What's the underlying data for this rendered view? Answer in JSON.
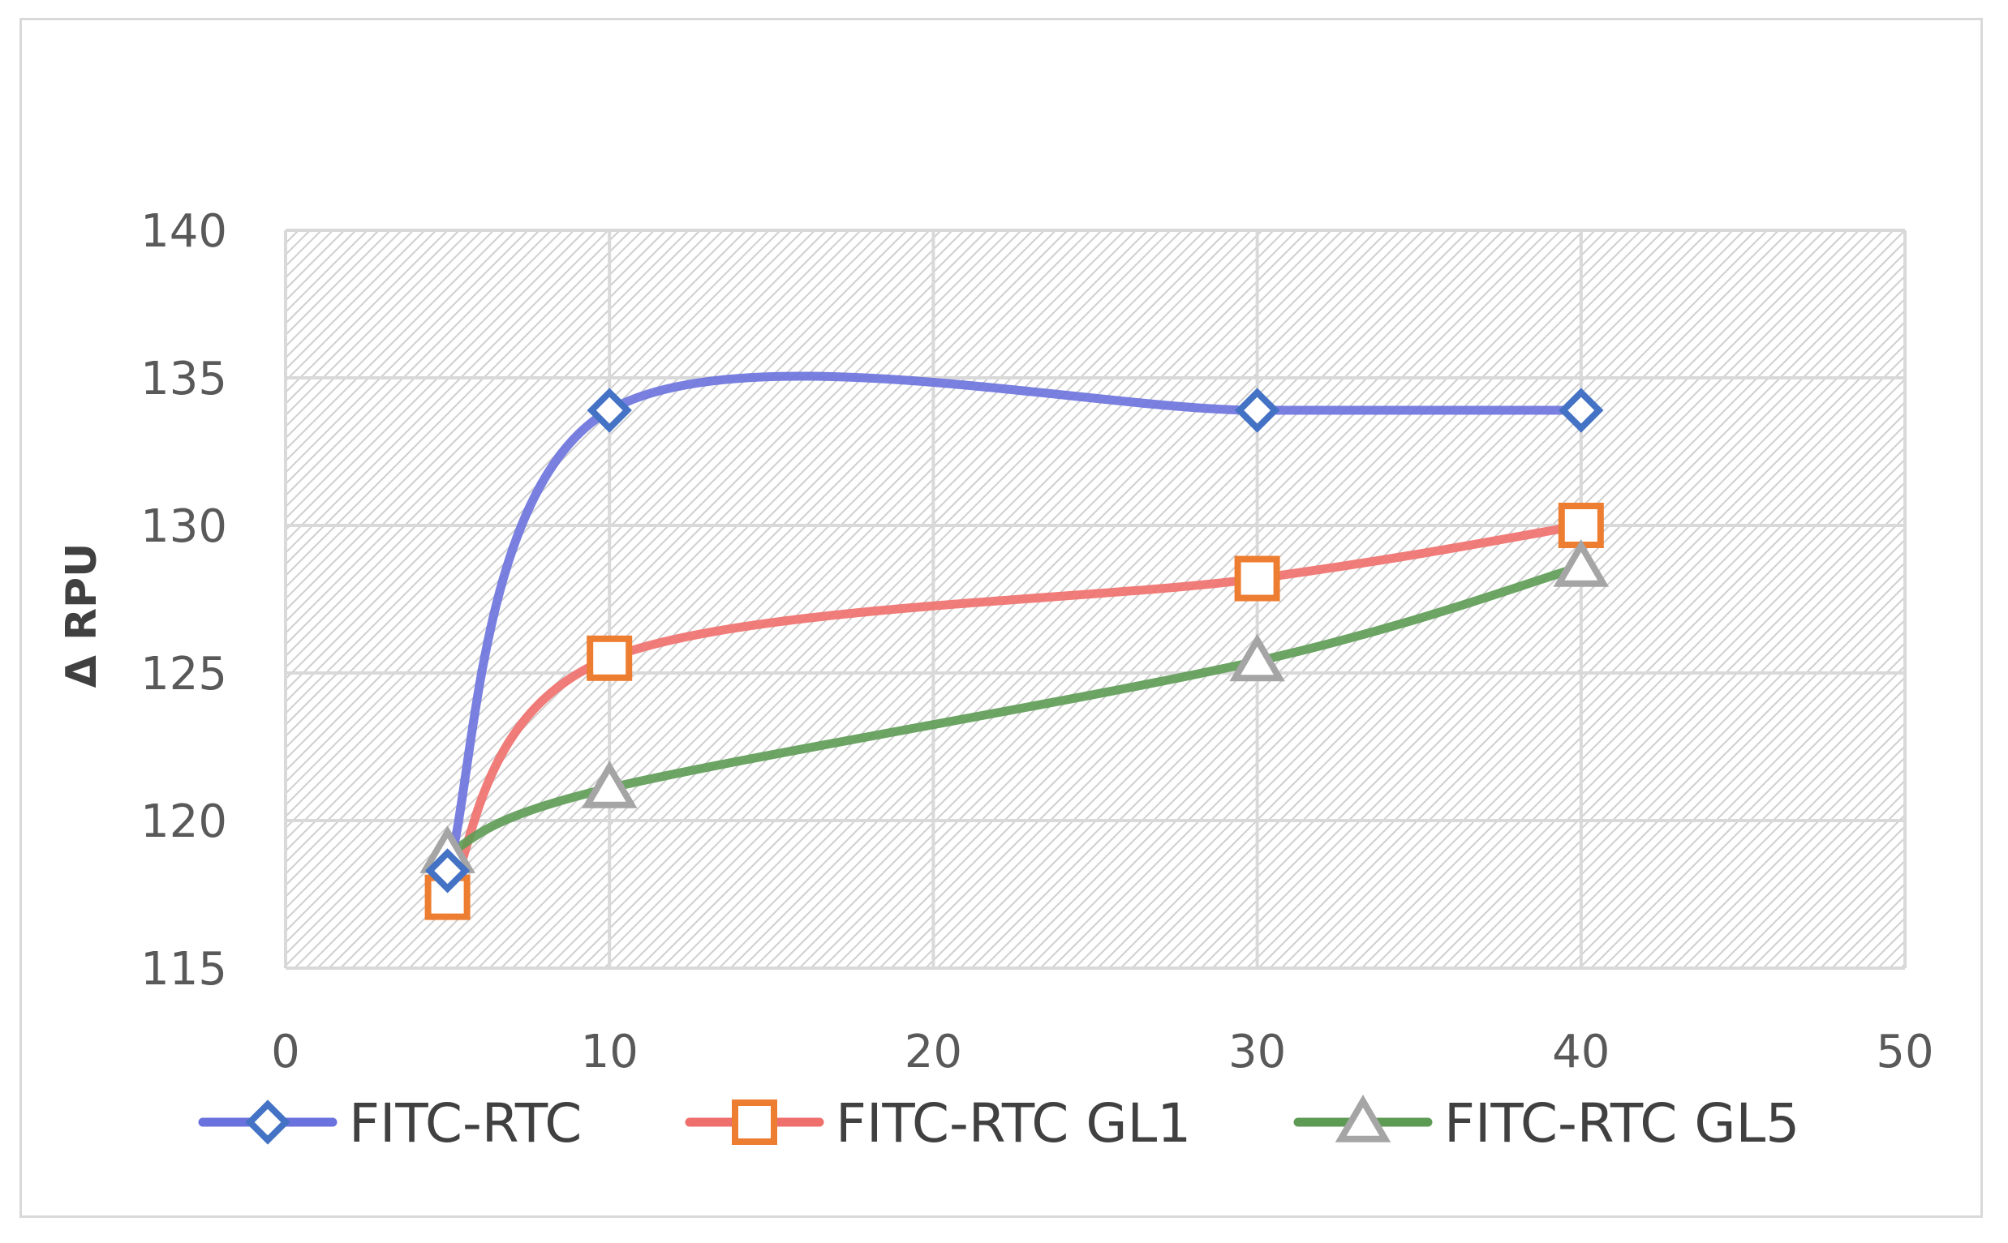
{
  "chart_data": {
    "type": "line",
    "smooth": true,
    "title": "",
    "xlabel": "",
    "ylabel": "Δ RPU",
    "xlim": [
      0,
      50
    ],
    "ylim": [
      115,
      140
    ],
    "xticks": [
      "0",
      "10",
      "20",
      "30",
      "40",
      "50"
    ],
    "yticks": [
      "115",
      "120",
      "125",
      "130",
      "135",
      "140"
    ],
    "grid": true,
    "plot_background": "hatched",
    "legend_position": "bottom",
    "x": [
      5,
      10,
      30,
      40
    ],
    "series": [
      {
        "name": "FITC-RTC",
        "values": [
          118.3,
          133.9,
          133.9,
          133.9
        ],
        "color": "#6a72dd",
        "marker": "diamond",
        "marker_color": "#4472c4"
      },
      {
        "name": "FITC-RTC GL1",
        "values": [
          117.4,
          125.5,
          128.2,
          130.0
        ],
        "color": "#ef6f6c",
        "marker": "square",
        "marker_color": "#ed7d31"
      },
      {
        "name": "FITC-RTC GL5",
        "values": [
          118.9,
          121.1,
          125.4,
          128.6
        ],
        "color": "#5d9b54",
        "marker": "triangle",
        "marker_color": "#a5a5a5"
      }
    ]
  }
}
